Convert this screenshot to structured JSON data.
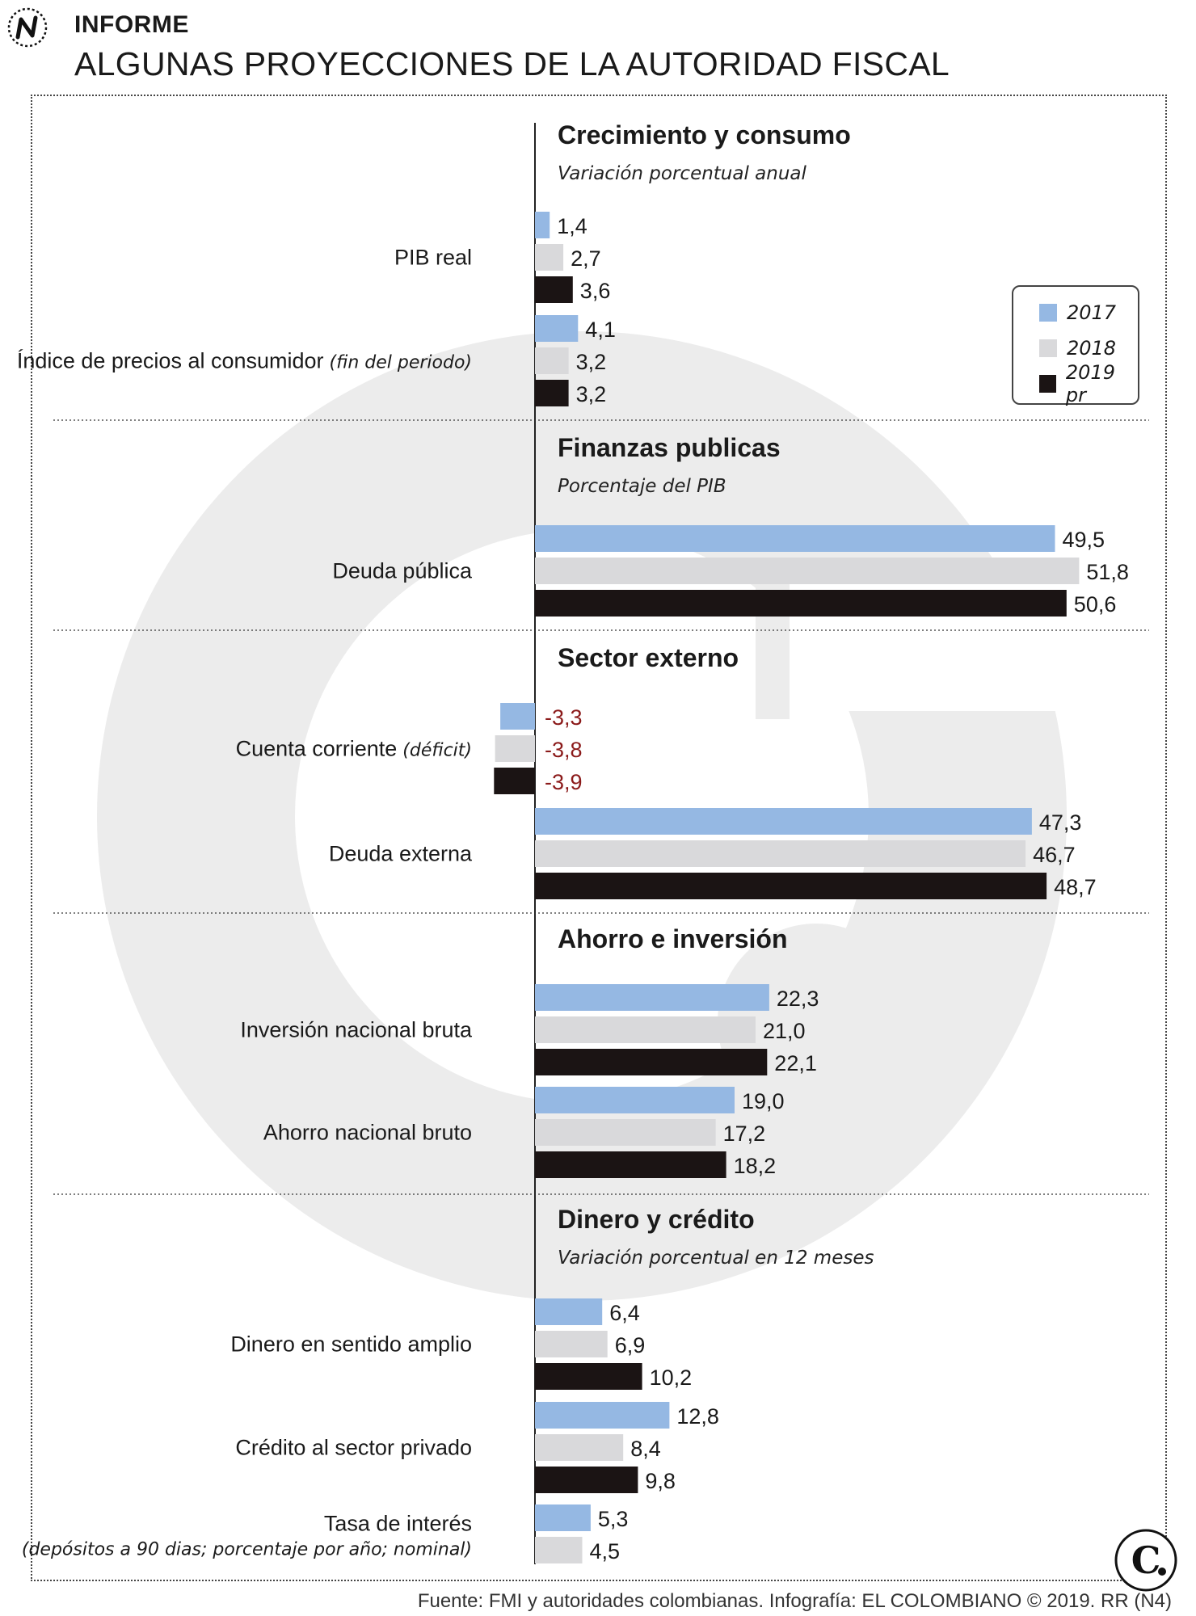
{
  "header": {
    "kicker": "INFORME",
    "title": "ALGUNAS PROYECCIONES DE LA AUTORIDAD FISCAL"
  },
  "colors": {
    "2017": "#95b8e3",
    "2018": "#d9d9db",
    "2019": "#1b1414",
    "negative_label": "#8b1a1a"
  },
  "legend": [
    {
      "label": "2017",
      "color": "#95b8e3"
    },
    {
      "label": "2018",
      "color": "#d9d9db"
    },
    {
      "label": "2019 pr",
      "color": "#1b1414"
    }
  ],
  "chart_data": {
    "type": "bar",
    "orientation": "horizontal",
    "series_names": [
      "2017",
      "2018",
      "2019 pr"
    ],
    "sections": [
      {
        "title": "Crecimiento y consumo",
        "subtitle": "Variación porcentual anual",
        "groups": [
          {
            "label": "PIB real",
            "note": "",
            "values": [
              1.4,
              2.7,
              3.6
            ],
            "value_labels": [
              "1,4",
              "2,7",
              "3,6"
            ]
          },
          {
            "label": "Índice de precios al consumidor",
            "note": "(fin del periodo)",
            "values": [
              4.1,
              3.2,
              3.2
            ],
            "value_labels": [
              "4,1",
              "3,2",
              "3,2"
            ]
          }
        ]
      },
      {
        "title": "Finanzas publicas",
        "subtitle": "Porcentaje del PIB",
        "groups": [
          {
            "label": "Deuda pública",
            "note": "",
            "values": [
              49.5,
              51.8,
              50.6
            ],
            "value_labels": [
              "49,5",
              "51,8",
              "50,6"
            ]
          }
        ]
      },
      {
        "title": "Sector externo",
        "subtitle": "",
        "groups": [
          {
            "label": "Cuenta corriente",
            "note": "(déficit)",
            "values": [
              -3.3,
              -3.8,
              -3.9
            ],
            "value_labels": [
              "-3,3",
              "-3,8",
              "-3,9"
            ]
          },
          {
            "label": "Deuda externa",
            "note": "",
            "values": [
              47.3,
              46.7,
              48.7
            ],
            "value_labels": [
              "47,3",
              "46,7",
              "48,7"
            ]
          }
        ]
      },
      {
        "title": "Ahorro e inversión",
        "subtitle": "",
        "groups": [
          {
            "label": "Inversión nacional bruta",
            "note": "",
            "values": [
              22.3,
              21.0,
              22.1
            ],
            "value_labels": [
              "22,3",
              "21,0",
              "22,1"
            ]
          },
          {
            "label": "Ahorro nacional bruto",
            "note": "",
            "values": [
              19.0,
              17.2,
              18.2
            ],
            "value_labels": [
              "19,0",
              "17,2",
              "18,2"
            ]
          }
        ]
      },
      {
        "title": "Dinero y crédito",
        "subtitle": "Variación porcentual en 12 meses",
        "groups": [
          {
            "label": "Dinero en sentido amplio",
            "note": "",
            "values": [
              6.4,
              6.9,
              10.2
            ],
            "value_labels": [
              "6,4",
              "6,9",
              "10,2"
            ]
          },
          {
            "label": "Crédito al sector privado",
            "note": "",
            "values": [
              12.8,
              8.4,
              9.8
            ],
            "value_labels": [
              "12,8",
              "8,4",
              "9,8"
            ]
          },
          {
            "label": "Tasa de interés",
            "note": "(depósitos a 90 dias; porcentaje por año; nominal)",
            "values": [
              5.3,
              4.5
            ],
            "value_labels": [
              "5,3",
              "4,5"
            ]
          }
        ]
      }
    ]
  },
  "footer": {
    "source": "Fuente: FMI y autoridades colombianas. Infografía: EL COLOMBIANO © 2019. RR (N4)"
  }
}
